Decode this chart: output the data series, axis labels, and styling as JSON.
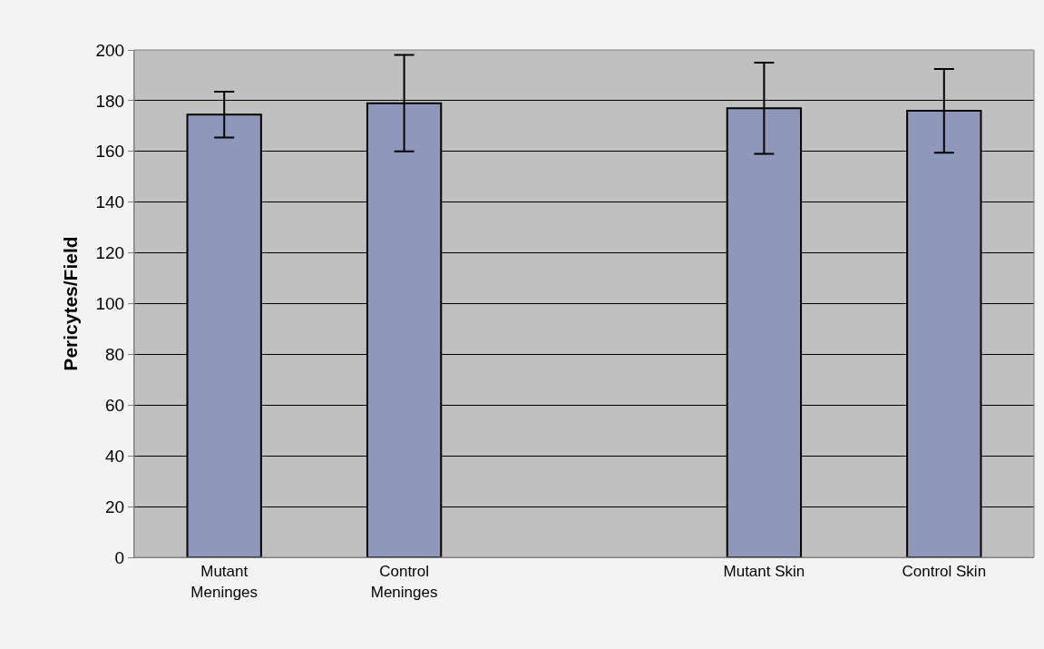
{
  "chart_data": {
    "type": "bar",
    "ylabel": "Pericytes/Field",
    "categories": [
      "Mutant Meninges",
      "Control Meninges",
      null,
      "Mutant Skin",
      "Control Skin"
    ],
    "series": [
      {
        "color": "#8f98bb",
        "values": [
          174.5,
          179,
          null,
          177,
          176
        ],
        "errors": [
          9,
          19,
          null,
          18,
          16.5
        ]
      }
    ],
    "ylim": [
      0,
      200
    ],
    "yticks": [
      0,
      20,
      40,
      60,
      80,
      100,
      120,
      140,
      160,
      180,
      200
    ],
    "grid": "y"
  }
}
